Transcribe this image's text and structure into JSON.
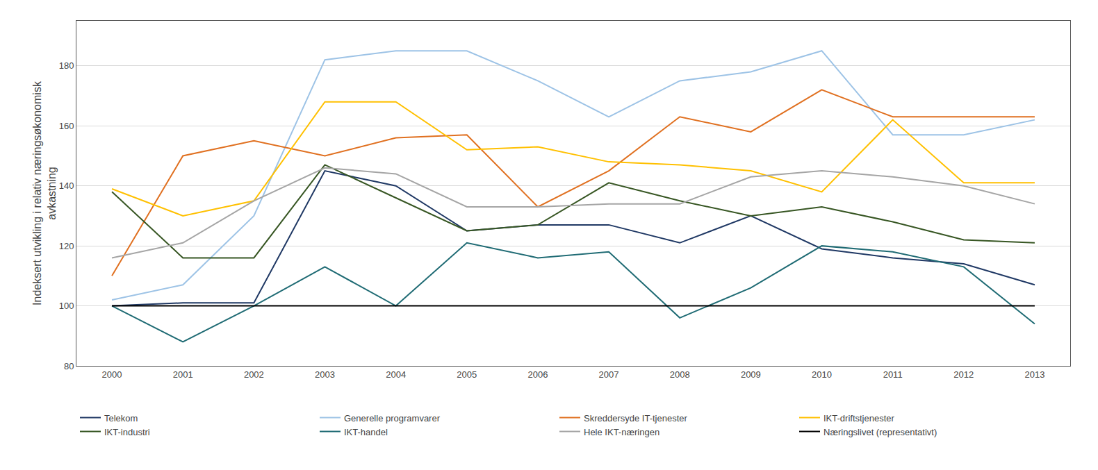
{
  "chart_data": {
    "type": "line",
    "ylabel": "Indeksert utvikling i relativ næringsøkonomisk\navkastning",
    "x": [
      2000,
      2001,
      2002,
      2003,
      2004,
      2005,
      2006,
      2007,
      2008,
      2009,
      2010,
      2011,
      2012,
      2013
    ],
    "series": [
      {
        "name": "Telekom",
        "color": "#1f3864",
        "values": [
          100,
          101,
          101,
          145,
          140,
          125,
          127,
          127,
          121,
          130,
          119,
          116,
          114,
          107
        ]
      },
      {
        "name": "Generelle programvarer",
        "color": "#9dc3e6",
        "values": [
          102,
          107,
          130,
          182,
          185,
          185,
          175,
          163,
          175,
          178,
          185,
          157,
          157,
          162
        ]
      },
      {
        "name": "Skreddersyde IT-tjenester",
        "color": "#e07020",
        "values": [
          110,
          150,
          155,
          150,
          156,
          157,
          133,
          145,
          163,
          158,
          172,
          163,
          163,
          163
        ]
      },
      {
        "name": "IKT-driftstjenester",
        "color": "#ffc000",
        "values": [
          139,
          130,
          135,
          168,
          168,
          152,
          153,
          148,
          147,
          145,
          138,
          162,
          141,
          141
        ]
      },
      {
        "name": "IKT-industri",
        "color": "#375623",
        "values": [
          138,
          116,
          116,
          147,
          136,
          125,
          127,
          141,
          135,
          130,
          133,
          128,
          122,
          121
        ]
      },
      {
        "name": "IKT-handel",
        "color": "#1f6b74",
        "values": [
          100,
          88,
          100,
          113,
          100,
          121,
          116,
          118,
          96,
          106,
          120,
          118,
          113,
          94
        ]
      },
      {
        "name": "Hele IKT-næringen",
        "color": "#a5a5a5",
        "values": [
          116,
          121,
          135,
          146,
          144,
          133,
          133,
          134,
          134,
          143,
          145,
          143,
          140,
          134
        ]
      },
      {
        "name": "Næringslivet (representativt)",
        "color": "#000000",
        "values": [
          100,
          100,
          100,
          100,
          100,
          100,
          100,
          100,
          100,
          100,
          100,
          100,
          100,
          100
        ]
      }
    ],
    "xlim": [
      1999.5,
      2013.5
    ],
    "xticks": [
      2000,
      2001,
      2002,
      2003,
      2004,
      2005,
      2006,
      2007,
      2008,
      2009,
      2010,
      2011,
      2012,
      2013
    ],
    "ylim": [
      80,
      195
    ],
    "yticks": [
      80,
      100,
      120,
      140,
      160,
      180
    ],
    "grid": "y",
    "legend": "bottom"
  }
}
